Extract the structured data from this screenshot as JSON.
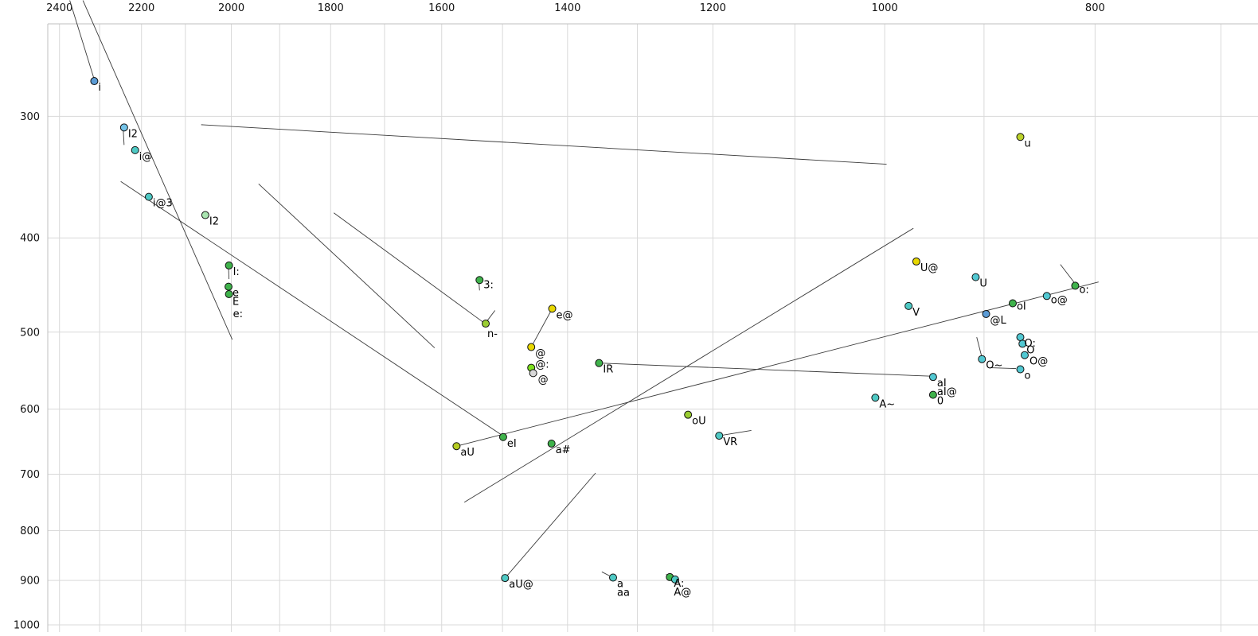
{
  "chart_data": {
    "type": "scatter",
    "title": "",
    "xlabel": "",
    "ylabel": "",
    "x_axis": {
      "scale": "log",
      "reversed": true,
      "left_value": 2430,
      "right_value": 673,
      "ticks": [
        2400,
        2200,
        2000,
        1800,
        1600,
        1400,
        1200,
        1000,
        800
      ],
      "grid_start": 2400,
      "grid_end": 700,
      "grid_step": 100
    },
    "y_axis": {
      "scale": "log",
      "increases_downward": true,
      "top_value": 241,
      "bottom_value": 1017,
      "ticks": [
        300,
        400,
        500,
        600,
        700,
        800,
        900,
        1000
      ],
      "grid_start": 300,
      "grid_end": 1000,
      "grid_step": 100
    },
    "style": {
      "grid_color": "#d9d9d9",
      "border_color": "#bfbfbf",
      "line_color": "#3a3a3a",
      "point_stroke": "#111111",
      "tick_text_color": "#111111",
      "label_text_color": "#000000",
      "point_radius": 4.5
    },
    "points": [
      {
        "label": "i",
        "f2": 2313,
        "f1": 276,
        "color": "#5b9bd5"
      },
      {
        "label": "I2",
        "f2": 2241,
        "f1": 308,
        "color": "#74c3e8"
      },
      {
        "label": "i@",
        "f2": 2215,
        "f1": 325,
        "color": "#4ec9c4"
      },
      {
        "label": "i@3",
        "f2": 2183,
        "f1": 363,
        "color": "#4ec9c4"
      },
      {
        "label": "I2",
        "f2": 2056,
        "f1": 379,
        "color": "#a9e5b0",
        "label_color": "#9fa8e0"
      },
      {
        "label": "I:",
        "f2": 2005,
        "f1": 427,
        "color": "#3fb24b"
      },
      {
        "label": "e",
        "f2": 2006,
        "f1": 449,
        "color": "#3fb24b"
      },
      {
        "label": "E",
        "f2": 2006,
        "f1": 449,
        "color": "#3fb24b",
        "marker": false,
        "label_dy": 23
      },
      {
        "label": "e:",
        "f2": 2005,
        "f1": 457,
        "color": "#3fb24b",
        "label_dy": 29
      },
      {
        "label": "3:",
        "f2": 1537,
        "f1": 442,
        "color": "#3fb24b",
        "label_dy": 10
      },
      {
        "label": "n-",
        "f2": 1527,
        "f1": 490,
        "color": "#9acd32",
        "label_dx": 2,
        "label_dy": 17
      },
      {
        "label": "@",
        "f2": 1455,
        "f1": 518,
        "color": "#e8d800"
      },
      {
        "label": "@:",
        "f2": 1455,
        "f1": 544,
        "color": "#7de01e",
        "label_dy": 0
      },
      {
        "label": "@",
        "f2": 1452,
        "f1": 551,
        "color": "#d8d8d8",
        "label_color": "#9e9e9e",
        "label_dx": 6
      },
      {
        "label": "e@",
        "f2": 1423,
        "f1": 473,
        "color": "#e8d800"
      },
      {
        "label": "IR",
        "f2": 1354,
        "f1": 538,
        "color": "#3fb24b"
      },
      {
        "label": "oU",
        "f2": 1232,
        "f1": 608,
        "color": "#9acd32"
      },
      {
        "label": "eI",
        "f2": 1499,
        "f1": 641,
        "color": "#3fb24b"
      },
      {
        "label": "aU",
        "f2": 1575,
        "f1": 655,
        "color": "#b5cc22"
      },
      {
        "label": "a#",
        "f2": 1424,
        "f1": 651,
        "color": "#3fb24b"
      },
      {
        "label": "VR",
        "f2": 1192,
        "f1": 639,
        "color": "#4ec9c4"
      },
      {
        "label": "aU@",
        "f2": 1496,
        "f1": 895,
        "color": "#4ec9c4"
      },
      {
        "label": "a",
        "f2": 1334,
        "f1": 894,
        "color": "#4ec9c4"
      },
      {
        "label": "aa",
        "f2": 1334,
        "f1": 894,
        "color": "#4ec9c4",
        "marker": false,
        "label_dy": 23
      },
      {
        "label": "A:",
        "f2": 1256,
        "f1": 893,
        "color": "#3fb24b"
      },
      {
        "label": "A@",
        "f2": 1256,
        "f1": 893,
        "color": "#4ec9c4",
        "marker": false,
        "label_dy": 23
      },
      {
        "label": "",
        "f2": 1249,
        "f1": 898,
        "color": "#4ec9c4"
      },
      {
        "label": "U@",
        "f2": 967,
        "f1": 423,
        "color": "#e8d800"
      },
      {
        "label": "U",
        "f2": 908,
        "f1": 439,
        "color": "#52c8d2"
      },
      {
        "label": "u",
        "f2": 866,
        "f1": 315,
        "color": "#bcd22b"
      },
      {
        "label": "V",
        "f2": 975,
        "f1": 470,
        "color": "#4ec9c4"
      },
      {
        "label": "@L",
        "f2": 898,
        "f1": 479,
        "color": "#5b9bd5"
      },
      {
        "label": "oI",
        "f2": 873,
        "f1": 467,
        "color": "#3fb24b",
        "label_dy": 8
      },
      {
        "label": "o@",
        "f2": 842,
        "f1": 459,
        "color": "#52c8d2",
        "label_dy": 9
      },
      {
        "label": "o:",
        "f2": 817,
        "f1": 448,
        "color": "#3fb24b",
        "label_dy": 9
      },
      {
        "label": "O:",
        "f2": 866,
        "f1": 506,
        "color": "#52c8d2"
      },
      {
        "label": "O",
        "f2": 864,
        "f1": 514,
        "color": "#52c8d2"
      },
      {
        "label": "O@",
        "f2": 862,
        "f1": 528,
        "color": "#52c8d2",
        "label_dx": 6
      },
      {
        "label": "O~",
        "f2": 902,
        "f1": 533,
        "color": "#52c8d2"
      },
      {
        "label": "o",
        "f2": 866,
        "f1": 546,
        "color": "#52c8d2"
      },
      {
        "label": "aI",
        "f2": 950,
        "f1": 556,
        "color": "#52c8d2"
      },
      {
        "label": "aI@",
        "f2": 950,
        "f1": 556,
        "color": "#52c8d2",
        "marker": false,
        "label_dy": 23
      },
      {
        "label": "0",
        "f2": 950,
        "f1": 580,
        "color": "#3fb24b"
      },
      {
        "label": "A~",
        "f2": 1010,
        "f1": 584,
        "color": "#4ec9c4"
      }
    ],
    "segments": [
      {
        "f2a": 2374,
        "f1a": 228,
        "f2b": 2313,
        "f1b": 275
      },
      {
        "f2a": 2341,
        "f1a": 228,
        "f2b": 1998,
        "f1b": 509
      },
      {
        "f2a": 2249,
        "f1a": 350,
        "f2b": 1498,
        "f1b": 640
      },
      {
        "f2a": 2065,
        "f1a": 306,
        "f2b": 998,
        "f1b": 336
      },
      {
        "f2a": 1943,
        "f1a": 352,
        "f2b": 1612,
        "f1b": 519
      },
      {
        "f2a": 1794,
        "f1a": 377,
        "f2b": 1530,
        "f1b": 489
      },
      {
        "f2a": 1575,
        "f1a": 655,
        "f2b": 797,
        "f1b": 444
      },
      {
        "f2a": 1562,
        "f1a": 748,
        "f2b": 970,
        "f1b": 391
      },
      {
        "f2a": 1496,
        "f1a": 895,
        "f2b": 1359,
        "f1b": 698
      },
      {
        "f2a": 1354,
        "f1a": 538,
        "f2b": 952,
        "f1b": 555
      },
      {
        "f2a": 1423,
        "f1a": 473,
        "f2b": 1455,
        "f1b": 518
      },
      {
        "f2a": 830,
        "f1a": 426,
        "f2b": 817,
        "f1b": 446
      },
      {
        "f2a": 907,
        "f1a": 506,
        "f2b": 902,
        "f1b": 531
      },
      {
        "f2a": 894,
        "f1a": 544,
        "f2b": 870,
        "f1b": 545
      },
      {
        "f2a": 1192,
        "f1a": 639,
        "f2b": 1152,
        "f1b": 631
      },
      {
        "f2a": 1350,
        "f1a": 882,
        "f2b": 1334,
        "f1b": 894
      },
      {
        "f2a": 1261,
        "f1a": 887,
        "f2b": 1256,
        "f1b": 893
      },
      {
        "f2a": 1527,
        "f1a": 489,
        "f2b": 1512,
        "f1b": 475
      },
      {
        "f2a": 2243,
        "f1a": 310,
        "f2b": 2241,
        "f1b": 321
      },
      {
        "f2a": 1538,
        "f1a": 444,
        "f2b": 1537,
        "f1b": 453
      },
      {
        "f2a": 2006,
        "f1a": 429,
        "f2b": 2005,
        "f1b": 441
      }
    ]
  }
}
